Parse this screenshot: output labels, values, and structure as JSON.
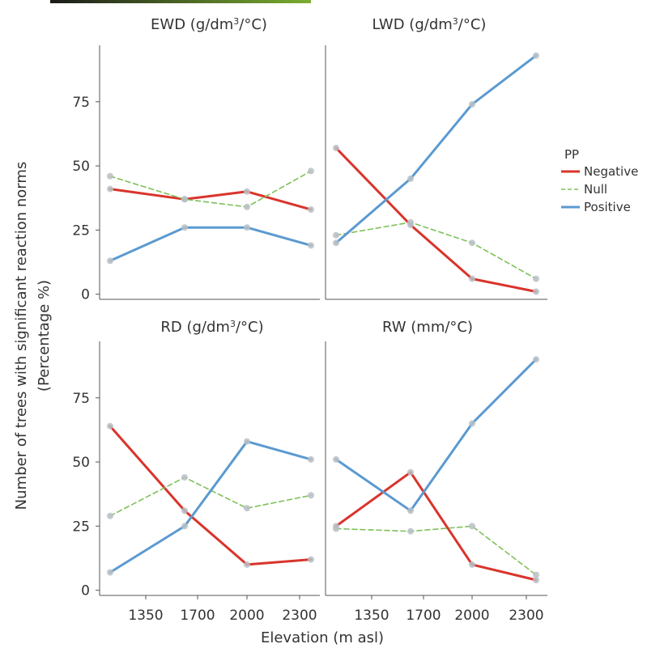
{
  "chart_data": {
    "type": "line",
    "xlabel": "Elevation (m asl)",
    "ylabel": "Number of trees with significant reaction norms",
    "ylabel_line2": "(Percentage %)",
    "x_ticks": [
      "1350",
      "1700",
      "2000",
      "2300"
    ],
    "y_ticks": [
      "0",
      "25",
      "50",
      "75"
    ],
    "x": [
      1200,
      1650,
      2000,
      2350
    ],
    "xlim": [
      1100,
      2450
    ],
    "ylim": [
      -2,
      97
    ],
    "legend": {
      "title": "PP",
      "placement": "right",
      "entries": [
        {
          "name": "Negative",
          "color": "#d9342b",
          "dashed": false
        },
        {
          "name": "Null",
          "color": "#7ec15a",
          "dashed": true
        },
        {
          "name": "Positive",
          "color": "#5b9ad0",
          "dashed": false
        }
      ]
    },
    "panels": [
      {
        "title": "EWD (g/dm",
        "title_sup": "3",
        "title_suffix": "/°C)",
        "series": [
          {
            "name": "Negative",
            "values": [
              41,
              37,
              40,
              33
            ]
          },
          {
            "name": "Null",
            "values": [
              46,
              37,
              34,
              48
            ]
          },
          {
            "name": "Positive",
            "values": [
              13,
              26,
              26,
              19
            ]
          }
        ]
      },
      {
        "title": "LWD (g/dm",
        "title_sup": "3",
        "title_suffix": "/°C)",
        "series": [
          {
            "name": "Negative",
            "values": [
              57,
              27,
              6,
              1
            ]
          },
          {
            "name": "Null",
            "values": [
              23,
              28,
              20,
              6
            ]
          },
          {
            "name": "Positive",
            "values": [
              20,
              45,
              74,
              93
            ]
          }
        ]
      },
      {
        "title": "RD (g/dm",
        "title_sup": "3",
        "title_suffix": "/°C)",
        "series": [
          {
            "name": "Negative",
            "values": [
              64,
              31,
              10,
              12
            ]
          },
          {
            "name": "Null",
            "values": [
              29,
              44,
              32,
              37
            ]
          },
          {
            "name": "Positive",
            "values": [
              7,
              25,
              58,
              51
            ]
          }
        ]
      },
      {
        "title": "RW (mm/°C)",
        "title_sup": "",
        "title_suffix": "",
        "series": [
          {
            "name": "Negative",
            "values": [
              25,
              46,
              10,
              4
            ]
          },
          {
            "name": "Null",
            "values": [
              24,
              23,
              25,
              6
            ]
          },
          {
            "name": "Positive",
            "values": [
              51,
              31,
              65,
              90
            ]
          }
        ]
      }
    ],
    "colors": {
      "negative": "#d9342b",
      "null": "#7ec15a",
      "positive": "#5b9ad0",
      "point": "#b9c0c6",
      "axis": "#555555",
      "top_bar_left": "#1a1a1a",
      "top_bar_right": "#7aae2f"
    }
  }
}
